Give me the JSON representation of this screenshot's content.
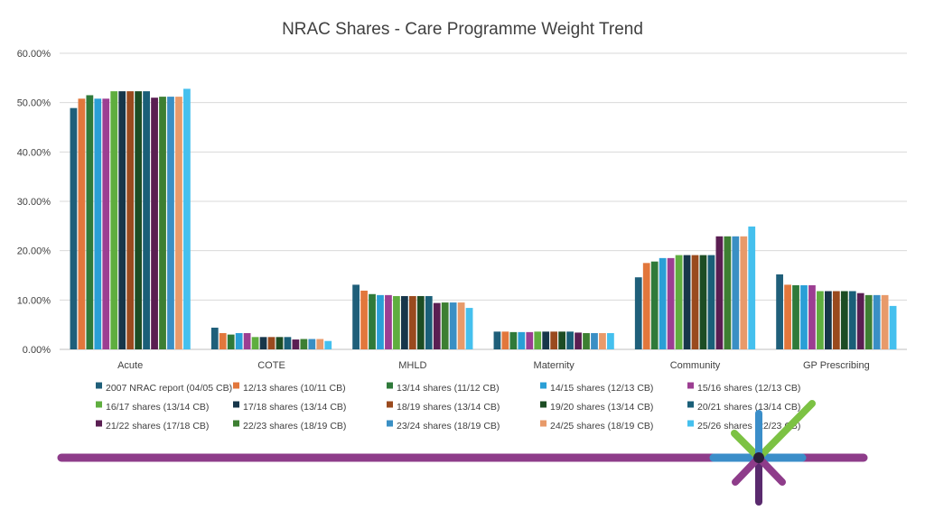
{
  "chart_data": {
    "type": "bar",
    "title": "NRAC Shares - Care Programme Weight Trend",
    "xlabel": "",
    "ylabel": "",
    "ylim": [
      0,
      60
    ],
    "yticks": [
      "0.00%",
      "10.00%",
      "20.00%",
      "30.00%",
      "40.00%",
      "50.00%",
      "60.00%"
    ],
    "categories": [
      "Acute",
      "COTE",
      "MHLD",
      "Maternity",
      "Community",
      "GP Prescribing"
    ],
    "legend_position": "bottom",
    "series": [
      {
        "name": "2007 NRAC report (04/05 CB)",
        "color": "#1f5f7a",
        "values": [
          48.9,
          4.4,
          13.1,
          3.6,
          14.6,
          15.2
        ]
      },
      {
        "name": "12/13 shares (10/11 CB)",
        "color": "#e2773c",
        "values": [
          50.8,
          3.3,
          11.9,
          3.6,
          17.5,
          13.1
        ]
      },
      {
        "name": "13/14 shares (11/12 CB)",
        "color": "#2f7a3a",
        "values": [
          51.5,
          3.0,
          11.2,
          3.5,
          17.8,
          13.0
        ]
      },
      {
        "name": "14/15 shares (12/13 CB)",
        "color": "#2a9fd6",
        "values": [
          50.8,
          3.3,
          11.0,
          3.5,
          18.5,
          13.0
        ]
      },
      {
        "name": "15/16 shares (12/13 CB)",
        "color": "#9c3e92",
        "values": [
          50.8,
          3.3,
          11.0,
          3.5,
          18.5,
          13.0
        ]
      },
      {
        "name": "16/17 shares (13/14 CB)",
        "color": "#5fae3f",
        "values": [
          52.3,
          2.5,
          10.8,
          3.6,
          19.1,
          11.8
        ]
      },
      {
        "name": "17/18 shares (13/14 CB)",
        "color": "#17364a",
        "values": [
          52.3,
          2.5,
          10.8,
          3.6,
          19.1,
          11.8
        ]
      },
      {
        "name": "18/19 shares (13/14 CB)",
        "color": "#9a4a1e",
        "values": [
          52.3,
          2.5,
          10.8,
          3.6,
          19.1,
          11.8
        ]
      },
      {
        "name": "19/20 shares (13/14 CB)",
        "color": "#1d4d24",
        "values": [
          52.3,
          2.5,
          10.8,
          3.6,
          19.1,
          11.8
        ]
      },
      {
        "name": "20/21 shares (13/14 CB)",
        "color": "#1a5f78",
        "values": [
          52.3,
          2.5,
          10.8,
          3.6,
          19.1,
          11.8
        ]
      },
      {
        "name": "21/22 shares (17/18 CB)",
        "color": "#5a1e52",
        "values": [
          51.0,
          2.0,
          9.4,
          3.4,
          22.9,
          11.4
        ]
      },
      {
        "name": "22/23 shares (18/19 CB)",
        "color": "#3d7f32",
        "values": [
          51.2,
          2.1,
          9.5,
          3.3,
          22.9,
          11.0
        ]
      },
      {
        "name": "23/24 shares (18/19 CB)",
        "color": "#3a8fc4",
        "values": [
          51.2,
          2.1,
          9.5,
          3.3,
          22.9,
          11.0
        ]
      },
      {
        "name": "24/25 shares (18/19 CB)",
        "color": "#e89a6a",
        "values": [
          51.2,
          2.1,
          9.5,
          3.3,
          22.9,
          11.0
        ]
      },
      {
        "name": "25/26 shares (22/23 CB)",
        "color": "#45c0ee",
        "values": [
          52.8,
          1.7,
          8.4,
          3.3,
          24.9,
          8.8
        ]
      }
    ]
  },
  "decoration": {
    "bar_color": "#8e3c8a",
    "star_colors": [
      "#7cc243",
      "#3b8ec9",
      "#8e3c8a",
      "#5a2a6e"
    ]
  }
}
